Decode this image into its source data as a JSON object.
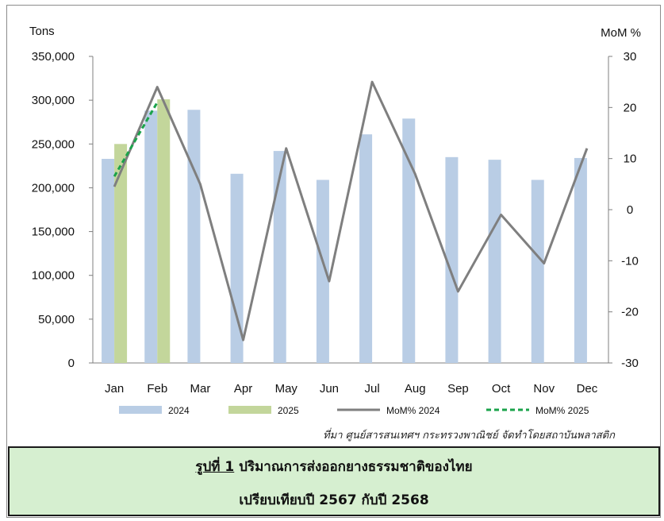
{
  "chart_data": {
    "type": "bar",
    "categories": [
      "Jan",
      "Feb",
      "Mar",
      "Apr",
      "May",
      "Jun",
      "Jul",
      "Aug",
      "Sep",
      "Oct",
      "Nov",
      "Dec"
    ],
    "series": [
      {
        "name": "2024",
        "kind": "bar",
        "axis": "left",
        "color": "#b9cde5",
        "values": [
          233000,
          288000,
          289000,
          216000,
          242000,
          209000,
          261000,
          279000,
          235000,
          232000,
          209000,
          234000
        ]
      },
      {
        "name": "2025",
        "kind": "bar",
        "axis": "left",
        "color": "#c3d69b",
        "values": [
          250000,
          301000,
          null,
          null,
          null,
          null,
          null,
          null,
          null,
          null,
          null,
          null
        ]
      },
      {
        "name": "MoM% 2024",
        "kind": "line",
        "axis": "right",
        "color": "#7f7f7f",
        "values": [
          4.5,
          24,
          5,
          -25.5,
          12,
          -14,
          25,
          7,
          -16,
          -1,
          -10.5,
          12
        ]
      },
      {
        "name": "MoM% 2025",
        "kind": "line",
        "axis": "right",
        "color": "#1aa34a",
        "dashed": true,
        "values": [
          6.5,
          21,
          null,
          null,
          null,
          null,
          null,
          null,
          null,
          null,
          null,
          null
        ]
      }
    ],
    "y_left": {
      "label": "Tons",
      "min": 0,
      "max": 350000,
      "ticks": [
        "0",
        "50,000",
        "100,000",
        "150,000",
        "200,000",
        "250,000",
        "300,000",
        "350,000"
      ]
    },
    "y_right": {
      "label": "MoM %",
      "min": -30,
      "max": 30,
      "ticks": [
        "-30",
        "-20",
        "-10",
        "0",
        "10",
        "20",
        "30"
      ]
    },
    "grid": false,
    "legend_position": "bottom"
  },
  "source_note": "ที่มา ศูนย์สารสนเทศฯ กระทรวงพาณิชย์ จัดทำโดยสถาบันพลาสติก",
  "caption": {
    "figure_label": "รูปที่ 1",
    "title_line1": "ปริมาณการส่งออกยางธรรมชาติของไทย",
    "title_line2": "เปรียบเทียบปี 2567 กับปี 2568"
  }
}
